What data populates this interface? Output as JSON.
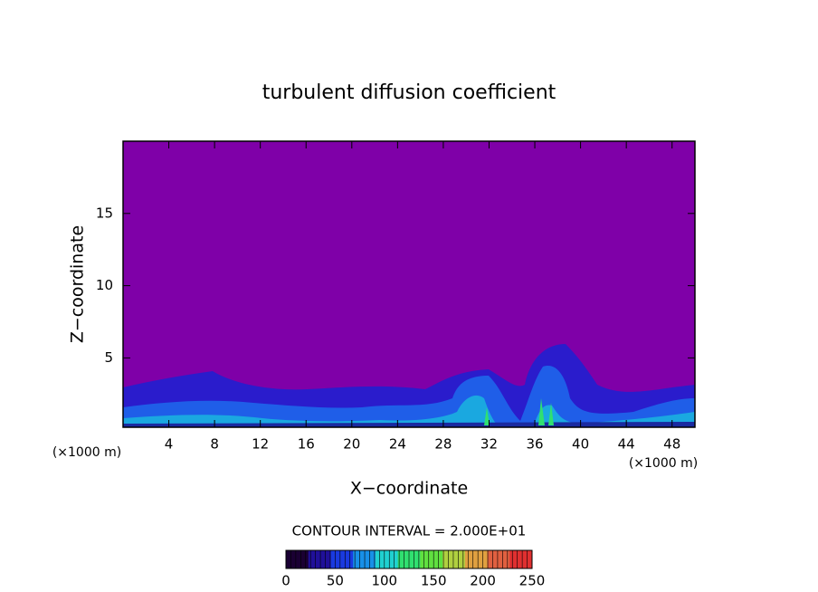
{
  "chart_data": {
    "type": "contour",
    "title": "turbulent diffusion coefficient",
    "xlabel": "X−coordinate",
    "ylabel": "Z−coordinate",
    "x_unit": "(×1000 m)",
    "y_unit": "(×1000 m)",
    "xlim": [
      0,
      50
    ],
    "xticks": [
      4,
      8,
      12,
      16,
      20,
      24,
      28,
      32,
      36,
      40,
      44,
      48
    ],
    "ylim": [
      0.2,
      20
    ],
    "yticks": [
      5,
      10,
      15
    ],
    "contour_interval_text": "CONTOUR INTERVAL = 2.000E+01",
    "colorbar": {
      "lim": [
        0,
        250
      ],
      "ticks": [
        0,
        50,
        100,
        150,
        200,
        250
      ],
      "colors": [
        "#1a0033",
        "#20109a",
        "#1a3ae0",
        "#1890e8",
        "#20d0d0",
        "#30e070",
        "#60e040",
        "#b0d040",
        "#e0a040",
        "#e06040",
        "#e03030"
      ]
    }
  }
}
